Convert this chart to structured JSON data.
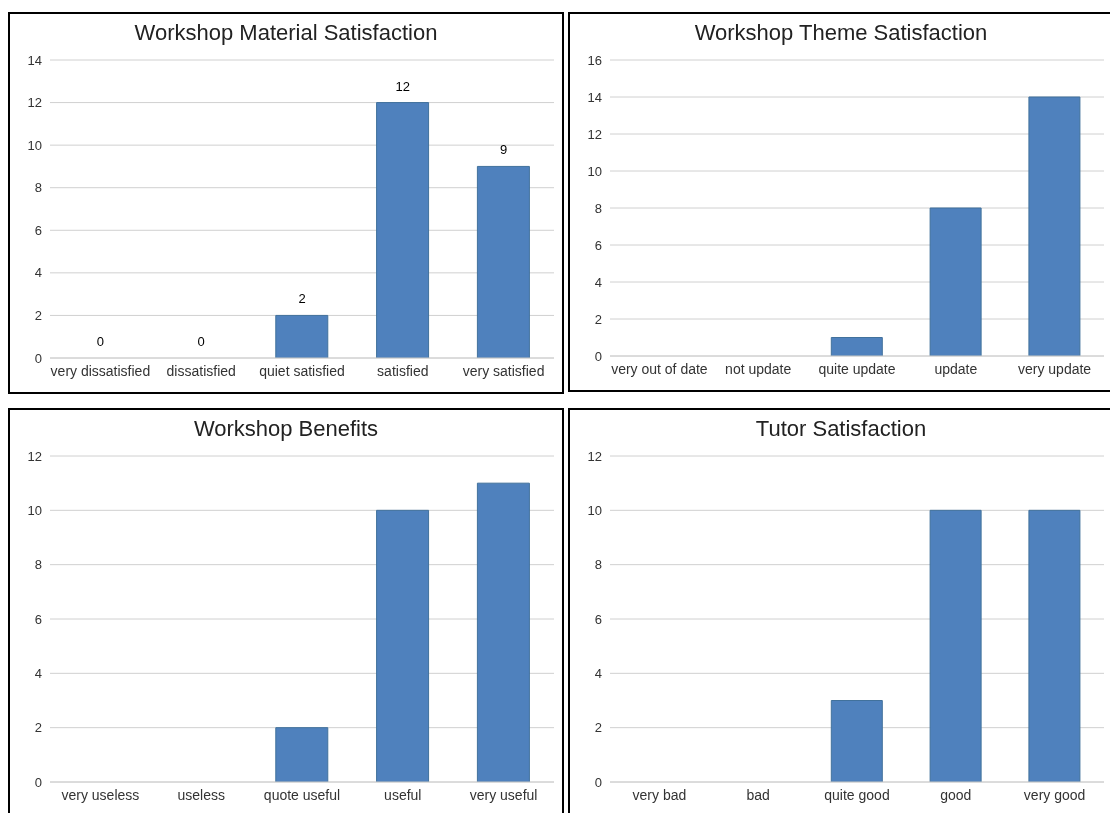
{
  "chart_data": [
    {
      "type": "bar",
      "title": "Workshop Material Satisfaction",
      "categories": [
        "very dissatisfied",
        "dissatisfied",
        "quiet satisfied",
        "satisfied",
        "very satisfied"
      ],
      "values": [
        0,
        0,
        2,
        12,
        9
      ],
      "color": "#4f81bd",
      "ylim": [
        0,
        14
      ],
      "yticks": [
        0,
        2,
        4,
        6,
        8,
        10,
        12,
        14
      ],
      "grid": "y",
      "data_labels": true
    },
    {
      "type": "bar",
      "title": "Workshop Theme Satisfaction",
      "categories": [
        "very out of date",
        "not update",
        "quite update",
        "update",
        "very update"
      ],
      "values": [
        0,
        0,
        1,
        8,
        14
      ],
      "color": "#4f81bd",
      "ylim": [
        0,
        16
      ],
      "yticks": [
        0,
        2,
        4,
        6,
        8,
        10,
        12,
        14,
        16
      ],
      "grid": "y"
    },
    {
      "type": "bar",
      "title": "Workshop Benefits",
      "categories": [
        "very useless",
        "useless",
        "quote useful",
        "useful",
        "very useful"
      ],
      "values": [
        0,
        0,
        2,
        10,
        11
      ],
      "color": "#4f81bd",
      "ylim": [
        0,
        12
      ],
      "yticks": [
        0,
        2,
        4,
        6,
        8,
        10,
        12
      ],
      "grid": "y"
    },
    {
      "type": "bar",
      "title": "Tutor Satisfaction",
      "categories": [
        "very bad",
        "bad",
        "quite good",
        "good",
        "very good"
      ],
      "values": [
        0,
        0,
        3,
        10,
        10
      ],
      "color": "#4f81bd",
      "ylim": [
        0,
        12
      ],
      "yticks": [
        0,
        2,
        4,
        6,
        8,
        10,
        12
      ],
      "grid": "y"
    }
  ]
}
